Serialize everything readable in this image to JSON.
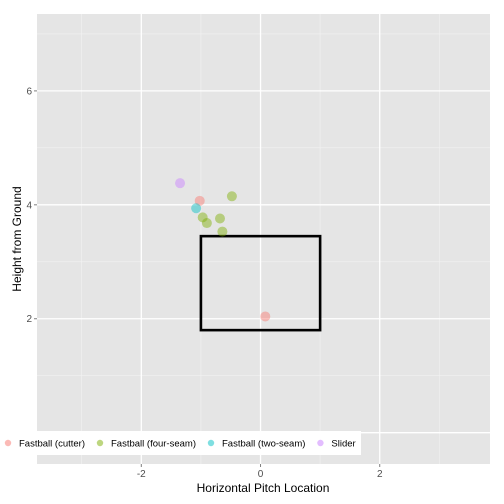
{
  "chart_data": {
    "type": "scatter",
    "xlabel": "Horizontal Pitch Location",
    "ylabel": "Height from Ground",
    "xlim": [
      -3.75,
      3.85
    ],
    "ylim": [
      -0.55,
      7.35
    ],
    "x_ticks": [
      -2,
      0,
      2
    ],
    "y_ticks": [
      2,
      4,
      6
    ],
    "x_tick_labels": [
      "-2",
      "0",
      "2"
    ],
    "y_tick_labels": [
      "2",
      "4",
      "6"
    ],
    "grid": true,
    "legend_position": "bottom-left",
    "strike_zone": {
      "x": [
        -1.0,
        1.0
      ],
      "y": [
        1.8,
        3.45
      ]
    },
    "series": [
      {
        "name": "Fastball (cutter)",
        "color": "#F8766D",
        "points": [
          {
            "x": -1.02,
            "y": 4.07
          },
          {
            "x": 0.08,
            "y": 2.04
          }
        ]
      },
      {
        "name": "Fastball (four-seam)",
        "color": "#7CAE00",
        "points": [
          {
            "x": -0.48,
            "y": 4.15
          },
          {
            "x": -0.97,
            "y": 3.78
          },
          {
            "x": -0.68,
            "y": 3.76
          },
          {
            "x": -0.9,
            "y": 3.68
          },
          {
            "x": -0.64,
            "y": 3.53
          }
        ]
      },
      {
        "name": "Fastball (two-seam)",
        "color": "#00BFC4",
        "points": [
          {
            "x": -1.08,
            "y": 3.94
          }
        ]
      },
      {
        "name": "Slider",
        "color": "#C77CFF",
        "points": [
          {
            "x": -1.35,
            "y": 4.38
          }
        ]
      }
    ]
  }
}
